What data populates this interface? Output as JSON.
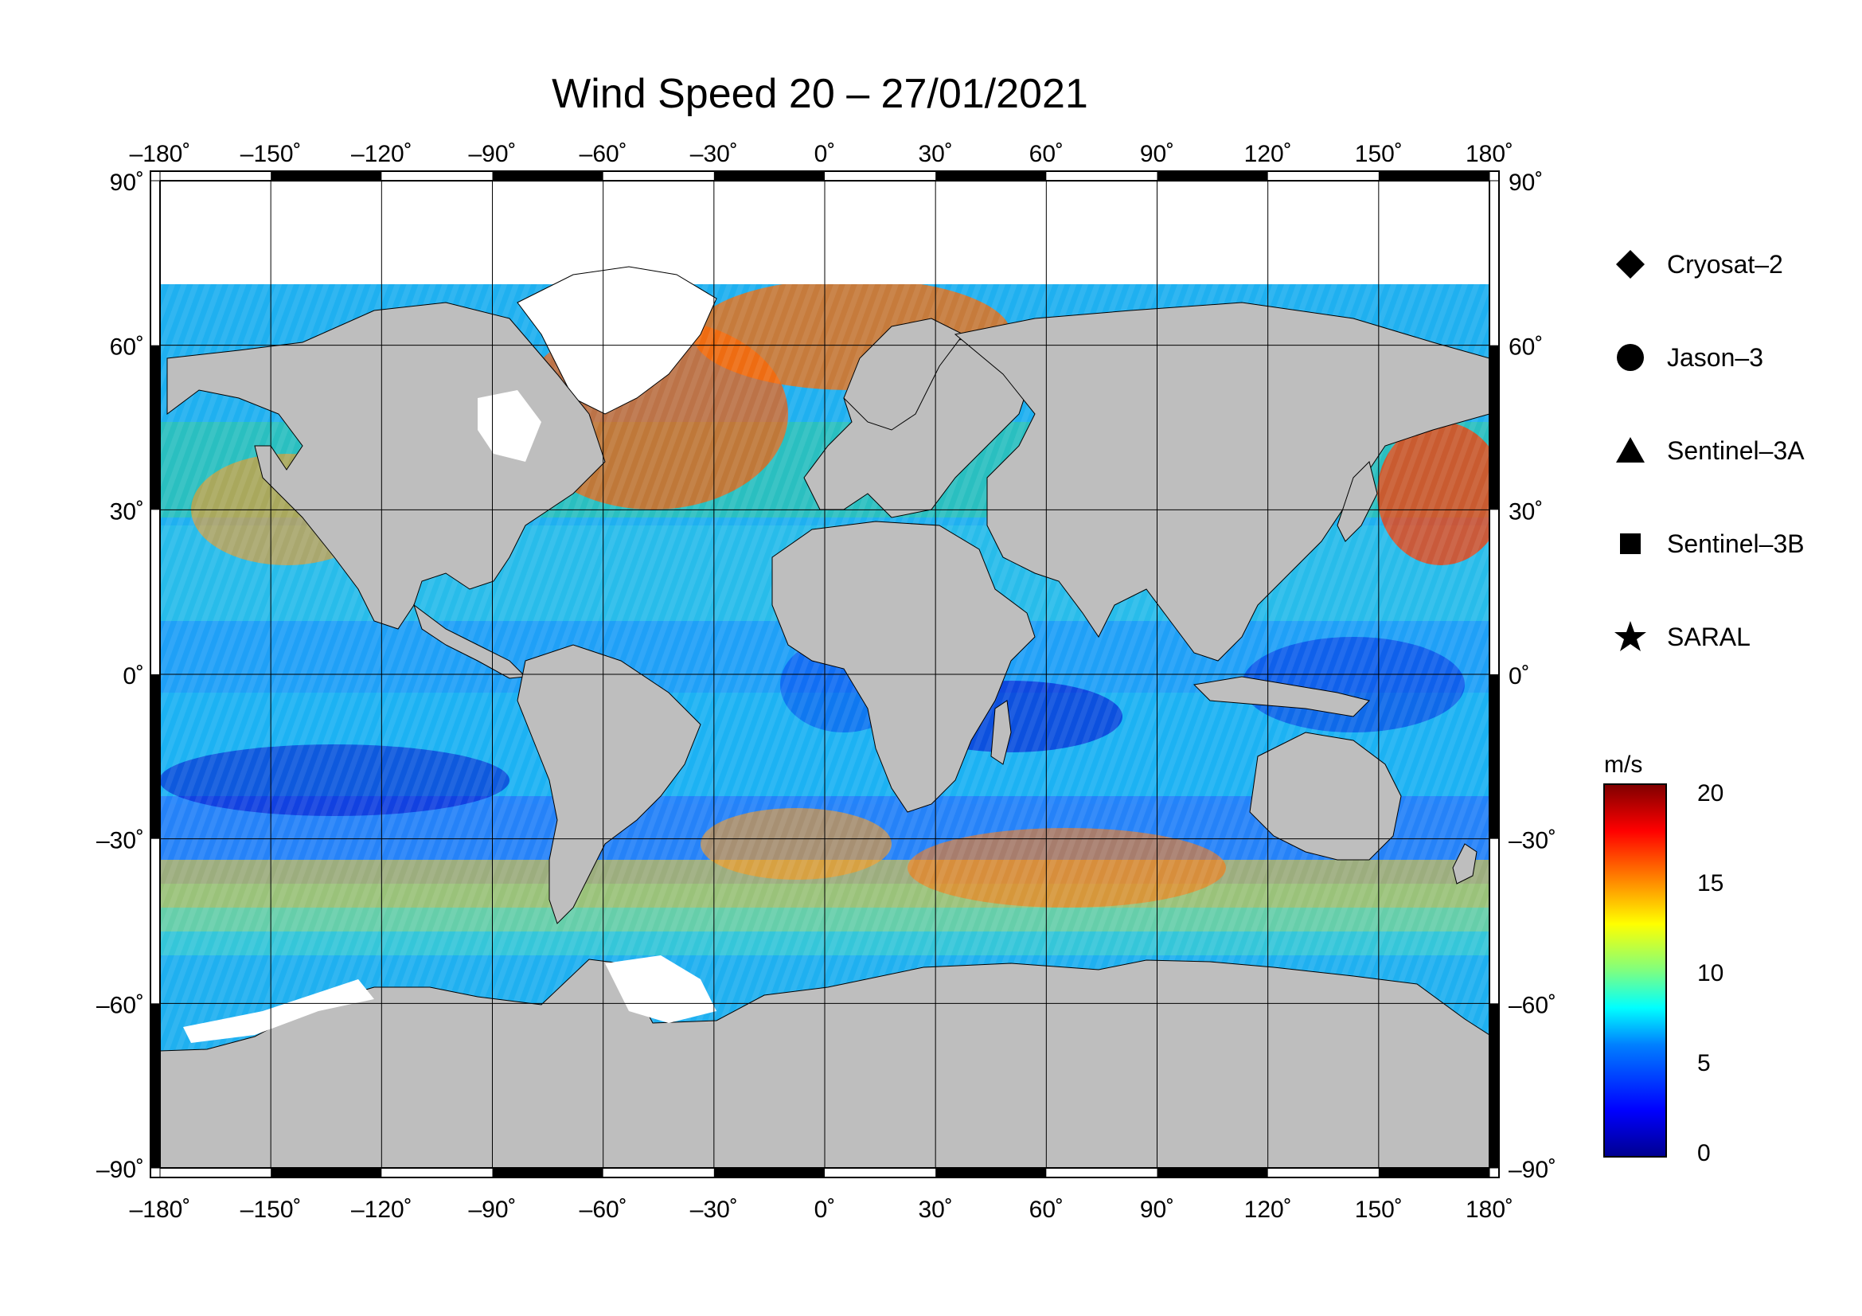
{
  "title": "Wind Speed 20 – 27/01/2021",
  "map": {
    "lon_ticks": [
      "–180˚",
      "–150˚",
      "–120˚",
      "–90˚",
      "–60˚",
      "–30˚",
      "0˚",
      "30˚",
      "60˚",
      "90˚",
      "120˚",
      "150˚",
      "180˚"
    ],
    "lat_ticks": [
      "90˚",
      "60˚",
      "30˚",
      "0˚",
      "–30˚",
      "–60˚",
      "–90˚"
    ],
    "land_color": "#bebebe",
    "ice_color": "#ffffff"
  },
  "legend": {
    "items": [
      {
        "label": "Cryosat–2",
        "icon": "diamond-icon"
      },
      {
        "label": "Jason–3",
        "icon": "circle-icon"
      },
      {
        "label": "Sentinel–3A",
        "icon": "triangle-icon"
      },
      {
        "label": "Sentinel–3B",
        "icon": "square-icon"
      },
      {
        "label": "SARAL",
        "icon": "star-icon"
      }
    ]
  },
  "colorbar": {
    "unit": "m/s",
    "ticks": [
      "20",
      "15",
      "10",
      "5",
      "0"
    ],
    "range": [
      0,
      20
    ],
    "colors": [
      "#00008f",
      "#0000ff",
      "#007fff",
      "#00ffff",
      "#7fff7f",
      "#ffff00",
      "#ff7f00",
      "#ff0000",
      "#7f0000"
    ]
  }
}
